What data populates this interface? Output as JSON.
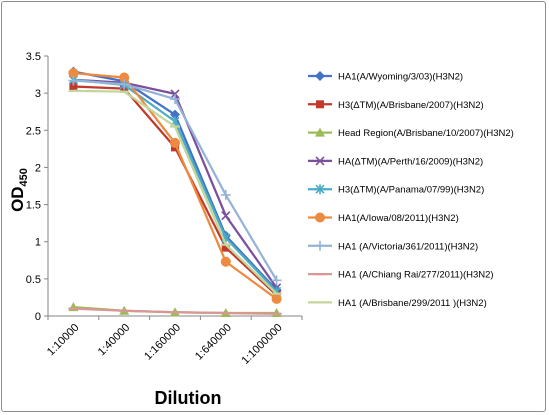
{
  "chart_data": {
    "type": "line",
    "title": "",
    "xlabel": "Dilution",
    "ylabel": {
      "main": "OD",
      "sub": "450"
    },
    "categories": [
      "1:10000",
      "1:40000",
      "1:160000",
      "1:640000",
      "1:1000000"
    ],
    "ylim": [
      0,
      3.5
    ],
    "yticks": [
      "0",
      "0.5",
      "1",
      "1.5",
      "2",
      "2.5",
      "3",
      "3.5"
    ],
    "grid": false,
    "legend": "right",
    "series": [
      {
        "name": "HA1(A/Wyoming/3/03)(H3N2)",
        "color": "#4472C4",
        "marker": "diamond",
        "values": [
          3.29,
          3.16,
          2.71,
          1.08,
          0.35
        ]
      },
      {
        "name": "H3(ΔTM)(A/Brisbane/2007)(H3N2)",
        "color": "#C0392B",
        "marker": "square",
        "values": [
          3.09,
          3.06,
          2.27,
          0.92,
          0.28
        ]
      },
      {
        "name": "Head Region(A/Brisbane/10/2007)(H3N2)",
        "color": "#9BBB59",
        "marker": "triangle",
        "values": [
          0.12,
          0.07,
          0.05,
          0.04,
          0.04
        ]
      },
      {
        "name": "HA(ΔTM)(A/Perth/16/2009)(H3N2)",
        "color": "#7B4F9E",
        "marker": "x",
        "values": [
          3.18,
          3.14,
          2.99,
          1.35,
          0.38
        ]
      },
      {
        "name": "H3(ΔTM)(A/Panama/07/99)(H3N2)",
        "color": "#4BACC6",
        "marker": "star",
        "values": [
          3.18,
          3.11,
          2.62,
          1.05,
          0.33
        ]
      },
      {
        "name": "HA1(A/Iowa/08/2011)(H3N2)",
        "color": "#ED8A3F",
        "marker": "circle",
        "values": [
          3.27,
          3.21,
          2.33,
          0.73,
          0.23
        ]
      },
      {
        "name": "HA1 (A/Victoria/361/2011)(H3N2)",
        "color": "#95B3D7",
        "marker": "plus",
        "values": [
          3.17,
          3.12,
          2.92,
          1.63,
          0.48
        ]
      },
      {
        "name": "HA1 (A/Chiang Rai/277/2011)(H3N2)",
        "color": "#D99694",
        "marker": "dash",
        "values": [
          0.1,
          0.07,
          0.05,
          0.04,
          0.03
        ]
      },
      {
        "name": "HA1 (A/Brisbane/299/2011 )(H3N2)",
        "color": "#C3D69B",
        "marker": "dash",
        "values": [
          3.03,
          3.02,
          2.55,
          0.96,
          0.3
        ]
      }
    ]
  }
}
